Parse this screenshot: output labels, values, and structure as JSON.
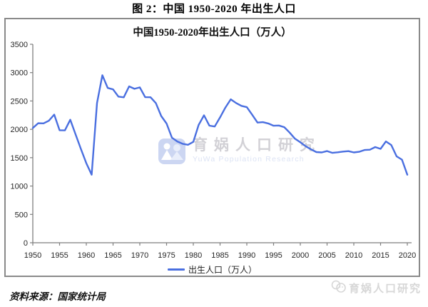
{
  "page_title": "图 2：中国 1950-2020 年出生人口",
  "figure": {
    "chart_title": "中国1950-2020年出生人口（万人）",
    "legend_label": "出生人口（万人）",
    "line_color": "#4a6fe0",
    "axis_color": "#7f7f7f",
    "tick_label_color": "#262626",
    "watermark_center": {
      "icon": "yuwa-people-logo-icon",
      "icon_color": "#ccd6f2",
      "text_cn": "育娲人口研究",
      "text_en": "YuWa Population Research"
    }
  },
  "source_note": "资料来源：国家统计局",
  "corner_watermark": {
    "icon": "yuwa-doodle-icon",
    "text": "育娲人口研究"
  },
  "chart_data": {
    "type": "line",
    "title": "中国1950-2020年出生人口（万人）",
    "xlabel": "",
    "ylabel": "",
    "ylim": [
      0,
      3500
    ],
    "ytick_step": 500,
    "yticks": [
      0,
      500,
      1000,
      1500,
      2000,
      2500,
      3000,
      3500
    ],
    "xticks": [
      1950,
      1955,
      1960,
      1965,
      1970,
      1975,
      1980,
      1985,
      1990,
      1995,
      2000,
      2005,
      2010,
      2015,
      2020
    ],
    "grid": false,
    "legend_position": "bottom",
    "x": [
      1950,
      1951,
      1952,
      1953,
      1954,
      1955,
      1956,
      1957,
      1958,
      1959,
      1960,
      1961,
      1962,
      1963,
      1964,
      1965,
      1966,
      1967,
      1968,
      1969,
      1970,
      1971,
      1972,
      1973,
      1974,
      1975,
      1976,
      1977,
      1978,
      1979,
      1980,
      1981,
      1982,
      1983,
      1984,
      1985,
      1986,
      1987,
      1988,
      1989,
      1990,
      1991,
      1992,
      1993,
      1994,
      1995,
      1996,
      1997,
      1998,
      1999,
      2000,
      2001,
      2002,
      2003,
      2004,
      2005,
      2006,
      2007,
      2008,
      2009,
      2010,
      2011,
      2012,
      2013,
      2014,
      2015,
      2016,
      2017,
      2018,
      2019,
      2020
    ],
    "series": [
      {
        "name": "出生人口（万人）",
        "values": [
          2023,
          2107,
          2105,
          2151,
          2260,
          1984,
          1982,
          2169,
          1909,
          1650,
          1402,
          1200,
          2464,
          2954,
          2729,
          2704,
          2577,
          2565,
          2757,
          2715,
          2739,
          2567,
          2566,
          2463,
          2235,
          2102,
          1853,
          1786,
          1745,
          1727,
          1779,
          2078,
          2247,
          2065,
          2050,
          2211,
          2384,
          2529,
          2464,
          2414,
          2391,
          2258,
          2119,
          2126,
          2104,
          2063,
          2067,
          2038,
          1942,
          1834,
          1771,
          1702,
          1647,
          1599,
          1593,
          1617,
          1585,
          1595,
          1608,
          1615,
          1592,
          1604,
          1635,
          1640,
          1687,
          1655,
          1786,
          1723,
          1523,
          1465,
          1200
        ]
      }
    ]
  }
}
